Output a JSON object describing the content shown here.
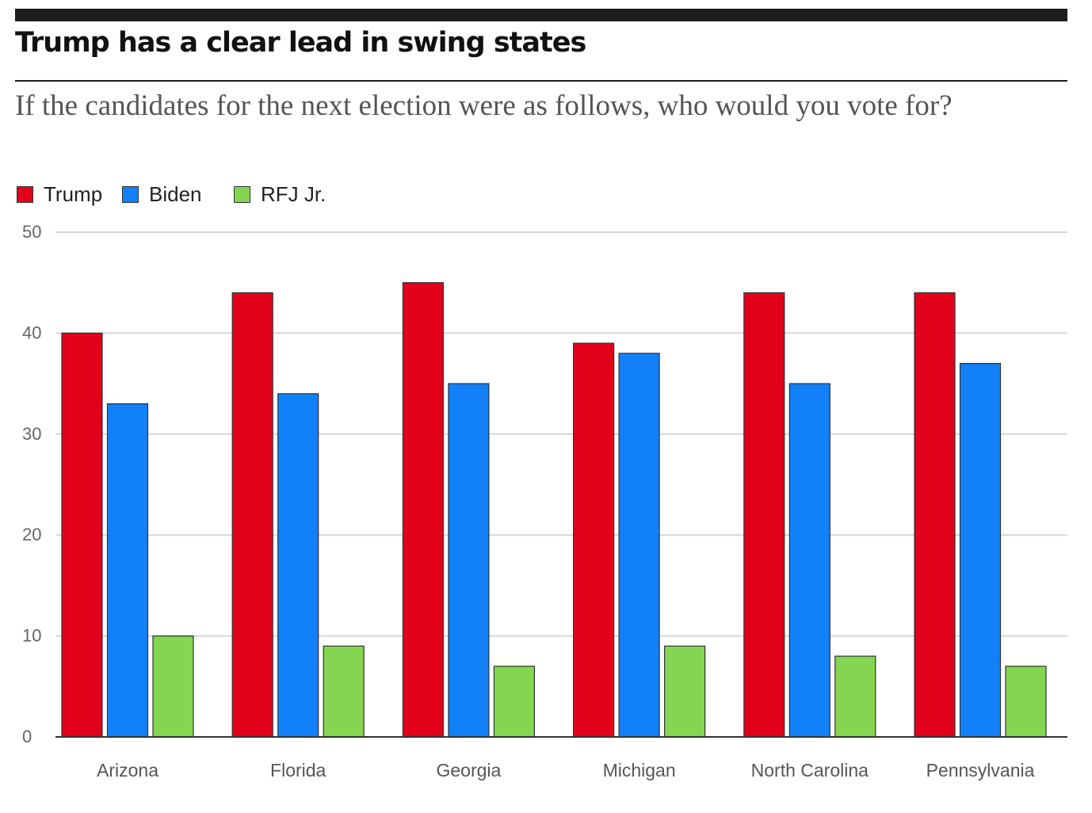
{
  "chart_data": {
    "type": "bar",
    "title": "Trump has a clear lead in swing states",
    "subtitle": "If the candidates for the next election were as follows, who would you vote for?",
    "categories": [
      "Arizona",
      "Florida",
      "Georgia",
      "Michigan",
      "North Carolina",
      "Pennsylvania"
    ],
    "series": [
      {
        "name": "Trump",
        "color": "#e3001b",
        "values": [
          40,
          44,
          45,
          39,
          44,
          44
        ]
      },
      {
        "name": "Biden",
        "color": "#1280f8",
        "values": [
          33,
          34,
          35,
          38,
          35,
          37
        ]
      },
      {
        "name": "RFJ Jr.",
        "color": "#84d650",
        "values": [
          10,
          9,
          7,
          9,
          8,
          7
        ]
      }
    ],
    "yticks": [
      0,
      10,
      20,
      30,
      40,
      50
    ],
    "ylim": [
      0,
      50
    ],
    "grid": true,
    "legend": "top-left"
  }
}
